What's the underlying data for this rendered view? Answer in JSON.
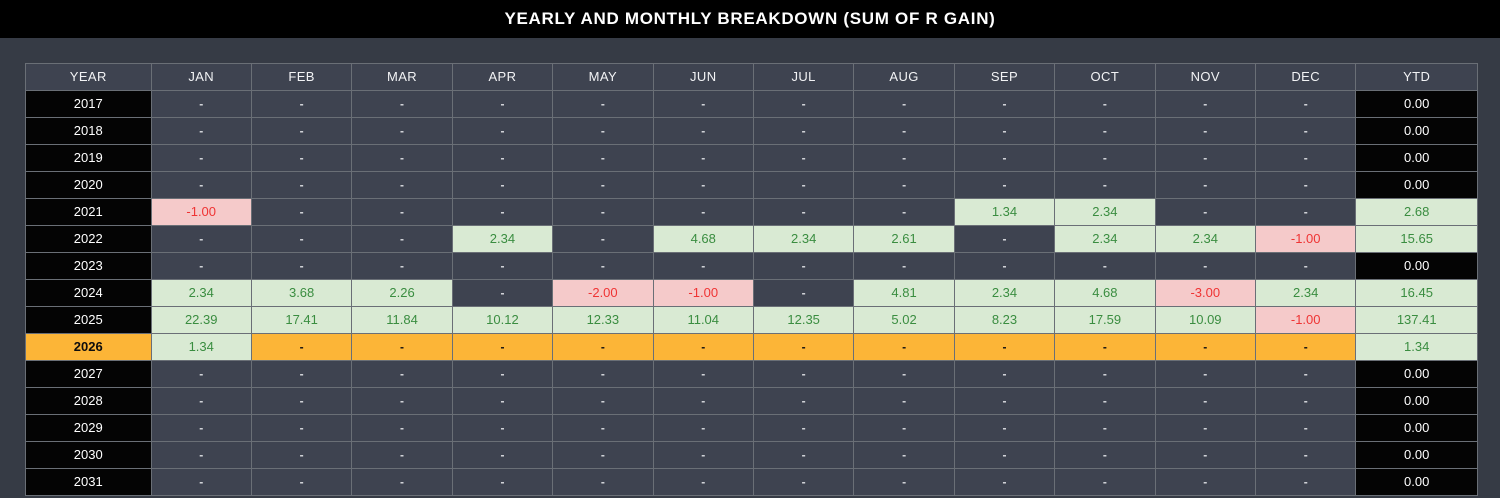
{
  "title": "YEARLY AND MONTHLY BREAKDOWN (SUM OF R GAIN)",
  "colors": {
    "page_background": "#363b45",
    "titlebar_background": "#000000",
    "cell_blank_background": "#3e4350",
    "year_cell_background": "#040404",
    "highlight_row_background": "#fcb537",
    "positive_background": "#d9ead3",
    "positive_text": "#3a8d40",
    "negative_background": "#f5caca",
    "negative_text": "#ef3434",
    "grid_border": "#6a6f76"
  },
  "table": {
    "columns": [
      "YEAR",
      "JAN",
      "FEB",
      "MAR",
      "APR",
      "MAY",
      "JUN",
      "JUL",
      "AUG",
      "SEP",
      "OCT",
      "NOV",
      "DEC",
      "YTD"
    ],
    "empty_placeholder": "-",
    "rows": [
      {
        "year": "2017",
        "highlight": false,
        "months": [
          "-",
          "-",
          "-",
          "-",
          "-",
          "-",
          "-",
          "-",
          "-",
          "-",
          "-",
          "-"
        ],
        "ytd": "0.00"
      },
      {
        "year": "2018",
        "highlight": false,
        "months": [
          "-",
          "-",
          "-",
          "-",
          "-",
          "-",
          "-",
          "-",
          "-",
          "-",
          "-",
          "-"
        ],
        "ytd": "0.00"
      },
      {
        "year": "2019",
        "highlight": false,
        "months": [
          "-",
          "-",
          "-",
          "-",
          "-",
          "-",
          "-",
          "-",
          "-",
          "-",
          "-",
          "-"
        ],
        "ytd": "0.00"
      },
      {
        "year": "2020",
        "highlight": false,
        "months": [
          "-",
          "-",
          "-",
          "-",
          "-",
          "-",
          "-",
          "-",
          "-",
          "-",
          "-",
          "-"
        ],
        "ytd": "0.00"
      },
      {
        "year": "2021",
        "highlight": false,
        "months": [
          "-1.00",
          "-",
          "-",
          "-",
          "-",
          "-",
          "-",
          "-",
          "1.34",
          "2.34",
          "-",
          "-"
        ],
        "ytd": "2.68"
      },
      {
        "year": "2022",
        "highlight": false,
        "months": [
          "-",
          "-",
          "-",
          "2.34",
          "-",
          "4.68",
          "2.34",
          "2.61",
          "-",
          "2.34",
          "2.34",
          "-1.00"
        ],
        "ytd": "15.65"
      },
      {
        "year": "2023",
        "highlight": false,
        "months": [
          "-",
          "-",
          "-",
          "-",
          "-",
          "-",
          "-",
          "-",
          "-",
          "-",
          "-",
          "-"
        ],
        "ytd": "0.00"
      },
      {
        "year": "2024",
        "highlight": false,
        "months": [
          "2.34",
          "3.68",
          "2.26",
          "-",
          "-2.00",
          "-1.00",
          "-",
          "4.81",
          "2.34",
          "4.68",
          "-3.00",
          "2.34"
        ],
        "ytd": "16.45"
      },
      {
        "year": "2025",
        "highlight": false,
        "months": [
          "22.39",
          "17.41",
          "11.84",
          "10.12",
          "12.33",
          "11.04",
          "12.35",
          "5.02",
          "8.23",
          "17.59",
          "10.09",
          "-1.00"
        ],
        "ytd": "137.41"
      },
      {
        "year": "2026",
        "highlight": true,
        "months": [
          "1.34",
          "-",
          "-",
          "-",
          "-",
          "-",
          "-",
          "-",
          "-",
          "-",
          "-",
          "-"
        ],
        "ytd": "1.34"
      },
      {
        "year": "2027",
        "highlight": false,
        "months": [
          "-",
          "-",
          "-",
          "-",
          "-",
          "-",
          "-",
          "-",
          "-",
          "-",
          "-",
          "-"
        ],
        "ytd": "0.00"
      },
      {
        "year": "2028",
        "highlight": false,
        "months": [
          "-",
          "-",
          "-",
          "-",
          "-",
          "-",
          "-",
          "-",
          "-",
          "-",
          "-",
          "-"
        ],
        "ytd": "0.00"
      },
      {
        "year": "2029",
        "highlight": false,
        "months": [
          "-",
          "-",
          "-",
          "-",
          "-",
          "-",
          "-",
          "-",
          "-",
          "-",
          "-",
          "-"
        ],
        "ytd": "0.00"
      },
      {
        "year": "2030",
        "highlight": false,
        "months": [
          "-",
          "-",
          "-",
          "-",
          "-",
          "-",
          "-",
          "-",
          "-",
          "-",
          "-",
          "-"
        ],
        "ytd": "0.00"
      },
      {
        "year": "2031",
        "highlight": false,
        "months": [
          "-",
          "-",
          "-",
          "-",
          "-",
          "-",
          "-",
          "-",
          "-",
          "-",
          "-",
          "-"
        ],
        "ytd": "0.00"
      }
    ]
  }
}
